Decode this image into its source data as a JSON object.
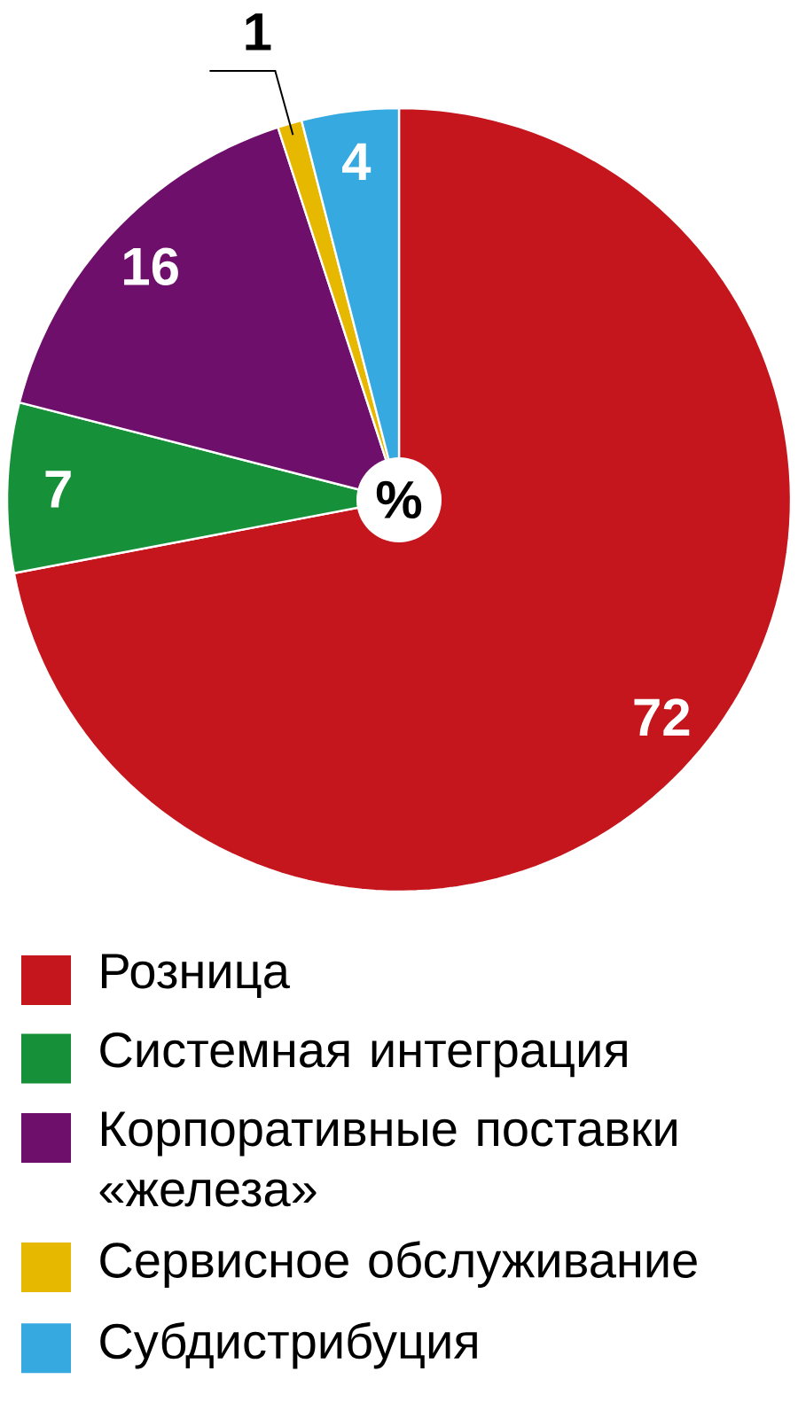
{
  "chart_data": {
    "type": "pie",
    "categories": [
      "Розница",
      "Системная интеграция",
      "Корпоративные поставки «железа»",
      "Сервисное обслуживание",
      "Субдистрибуция"
    ],
    "values": [
      72,
      7,
      16,
      1,
      4
    ],
    "value_labels": [
      "72",
      "7",
      "16",
      "1",
      "4"
    ],
    "colors": [
      "#c4161c",
      "#16913a",
      "#6e0f6b",
      "#e6b800",
      "#36a9e1"
    ],
    "legend": "bottom",
    "annotations": [
      "%"
    ]
  }
}
